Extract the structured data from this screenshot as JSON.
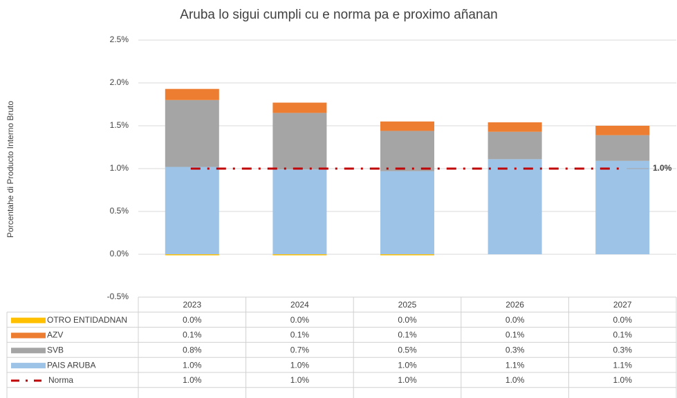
{
  "chart_data": {
    "type": "bar",
    "stacked": true,
    "title": "Aruba lo sigui cumpli cu e norma pa e proximo añanan",
    "y_label": "Porcentahe di Producto Interno Bruto",
    "categories": [
      "2023",
      "2024",
      "2025",
      "2026",
      "2027"
    ],
    "ylim": [
      -0.5,
      2.5
    ],
    "yticks": [
      {
        "value": -0.5,
        "label": "-0.5%"
      },
      {
        "value": 0,
        "label": "0.0%"
      },
      {
        "value": 0.5,
        "label": "0.5%"
      },
      {
        "value": 1,
        "label": "1.0%"
      },
      {
        "value": 1.5,
        "label": "1.5%"
      },
      {
        "value": 2,
        "label": "2.0%"
      },
      {
        "value": 2.5,
        "label": "2.5%"
      }
    ],
    "grid": true,
    "data_table": true,
    "series": [
      {
        "name": "OTRO ENTIDADNAN",
        "color": "#ffc000",
        "values": [
          -0.01,
          -0.01,
          -0.01,
          0,
          0
        ],
        "value_labels": [
          "0.0%",
          "0.0%",
          "0.0%",
          "0.0%",
          "0.0%"
        ]
      },
      {
        "name": "AZV",
        "color": "#ed7d31",
        "values": [
          0.13,
          0.12,
          0.11,
          0.11,
          0.11
        ],
        "value_labels": [
          "0.1%",
          "0.1%",
          "0.1%",
          "0.1%",
          "0.1%"
        ]
      },
      {
        "name": "SVB",
        "color": "#a5a5a5",
        "values": [
          0.78,
          0.66,
          0.47,
          0.32,
          0.3
        ],
        "value_labels": [
          "0.8%",
          "0.7%",
          "0.5%",
          "0.3%",
          "0.3%"
        ]
      },
      {
        "name": "PAIS ARUBA",
        "color": "#9dc3e6",
        "values": [
          1.02,
          0.99,
          0.97,
          1.11,
          1.09
        ],
        "value_labels": [
          "1.0%",
          "1.0%",
          "1.0%",
          "1.1%",
          "1.1%"
        ]
      },
      {
        "name": "Norma",
        "type": "line",
        "color": "#c00000",
        "values": [
          1,
          1,
          1,
          1,
          1
        ],
        "value_labels": [
          "1.0%",
          "1.0%",
          "1.0%",
          "1.0%",
          "1.0%"
        ]
      }
    ],
    "annotation": "1.0%"
  }
}
